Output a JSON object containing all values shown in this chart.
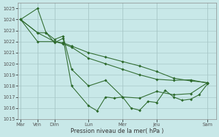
{
  "xlabel": "Pression niveau de la mer( hPa )",
  "ylim": [
    1015,
    1025.5
  ],
  "yticks": [
    1015,
    1016,
    1017,
    1018,
    1019,
    1020,
    1021,
    1022,
    1023,
    1024,
    1025
  ],
  "line_color": "#2d6a2d",
  "bg_color": "#c8e8e8",
  "grid_color": "#a8c8c8",
  "day_labels": [
    "Mar",
    "Ven",
    "Dim",
    "Lun",
    "Mer",
    "Jeu",
    "Sam"
  ],
  "day_positions": [
    0,
    1,
    2,
    4,
    6,
    8,
    11
  ],
  "xlim": [
    -0.15,
    11.5
  ],
  "series1_x": [
    0,
    1,
    2,
    2.5,
    3,
    4,
    5,
    6,
    7,
    8,
    9,
    10,
    11
  ],
  "series1_y": [
    1024.0,
    1022.8,
    1022.0,
    1021.9,
    1021.6,
    1021.0,
    1020.6,
    1020.2,
    1019.8,
    1019.3,
    1018.7,
    1018.45,
    1018.3
  ],
  "series2_x": [
    0,
    1,
    2,
    2.5,
    3,
    4,
    5,
    6,
    7,
    8,
    9,
    10,
    11
  ],
  "series2_y": [
    1024.0,
    1022.0,
    1022.0,
    1021.8,
    1021.5,
    1020.5,
    1020.0,
    1019.5,
    1019.0,
    1018.6,
    1018.5,
    1018.55,
    1018.25
  ],
  "series3_x": [
    0,
    1,
    1.5,
    2,
    2.5,
    3,
    4,
    5,
    6,
    7,
    8,
    9,
    10,
    11
  ],
  "series3_y": [
    1024.0,
    1025.0,
    1022.8,
    1022.2,
    1022.5,
    1019.5,
    1018.0,
    1018.5,
    1017.0,
    1016.9,
    1017.5,
    1017.2,
    1017.3,
    1018.3
  ],
  "series4_x": [
    0,
    1,
    1.5,
    2,
    2.5,
    3,
    4,
    4.5,
    5,
    5.5,
    6,
    6.5,
    7,
    7.5,
    8,
    8.5,
    9,
    9.5,
    10,
    10.5,
    11
  ],
  "series4_y": [
    1024.0,
    1022.8,
    1022.8,
    1021.9,
    1022.3,
    1018.0,
    1016.2,
    1015.75,
    1017.0,
    1016.9,
    1017.0,
    1016.0,
    1015.8,
    1016.6,
    1016.5,
    1017.6,
    1017.0,
    1016.7,
    1016.8,
    1017.2,
    1018.2
  ]
}
